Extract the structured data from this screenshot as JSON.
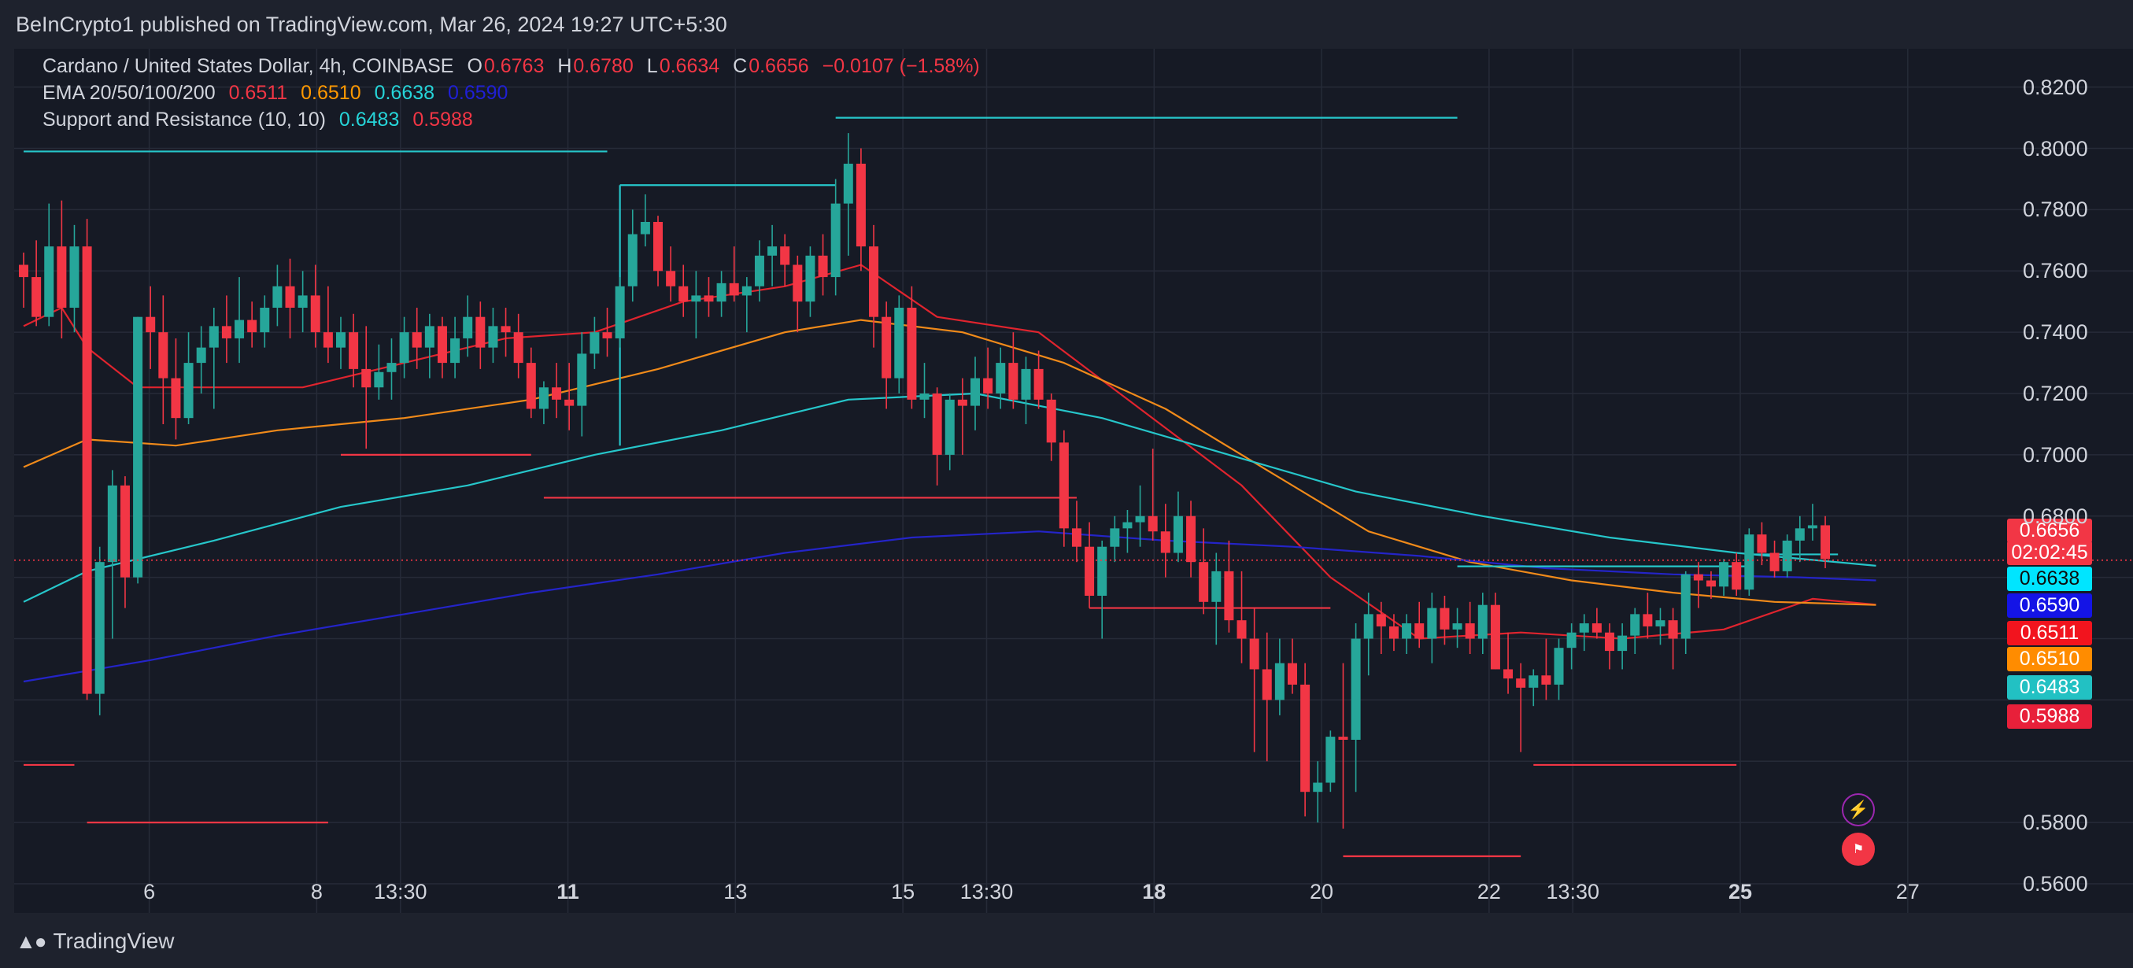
{
  "header": {
    "publish_line": "BeInCrypto1 published on TradingView.com, Mar 26, 2024 19:27 UTC+5:30"
  },
  "legend": {
    "symbol": "Cardano / United States Dollar, 4h, COINBASE",
    "o_label": "O",
    "o": "0.6763",
    "h_label": "H",
    "h": "0.6780",
    "l_label": "L",
    "l": "0.6634",
    "c_label": "C",
    "c": "0.6656",
    "change": "−0.0107 (−1.58%)",
    "ema_name": "EMA 20/50/100/200",
    "ema20": "0.6511",
    "ema50": "0.6510",
    "ema100": "0.6638",
    "ema200": "0.6590",
    "sr_name": "Support and Resistance (10, 10)",
    "sr_res": "0.6483",
    "sr_sup": "0.5988"
  },
  "price_tags": {
    "last": "0.6656",
    "countdown": "02:02:45",
    "ema100": "0.6638",
    "ema200": "0.6590",
    "ema20": "0.6511",
    "ema50": "0.6510",
    "resistance": "0.6483",
    "support": "0.5988"
  },
  "footer": {
    "brand": "TradingView"
  },
  "icons": {
    "flash": "lightning-icon",
    "flag": "us-flag-icon"
  },
  "colors": {
    "up": "#26a69a",
    "down": "#f23645",
    "ema20": "#e0242e",
    "ema50": "#f08a1a",
    "ema100": "#26c6ca",
    "ema200": "#2424c8",
    "resistance": "#26c6ca",
    "support": "#f23645"
  },
  "chart_data": {
    "type": "candlestick",
    "symbol": "ADA/USD",
    "timeframe": "4h",
    "exchange": "COINBASE",
    "x_ticks": [
      {
        "label": "6",
        "bold": false,
        "t": 1.5
      },
      {
        "label": "8",
        "bold": false,
        "t": 3.5
      },
      {
        "label": "13:30",
        "bold": false,
        "t": 4.5
      },
      {
        "label": "11",
        "bold": true,
        "t": 6.5
      },
      {
        "label": "13",
        "bold": false,
        "t": 8.5
      },
      {
        "label": "15",
        "bold": false,
        "t": 10.5
      },
      {
        "label": "13:30",
        "bold": false,
        "t": 11.5
      },
      {
        "label": "18",
        "bold": true,
        "t": 13.5
      },
      {
        "label": "20",
        "bold": false,
        "t": 15.5
      },
      {
        "label": "22",
        "bold": false,
        "t": 17.5
      },
      {
        "label": "13:30",
        "bold": false,
        "t": 18.5
      },
      {
        "label": "25",
        "bold": true,
        "t": 20.5
      },
      {
        "label": "27",
        "bold": false,
        "t": 22.5
      }
    ],
    "y_ticks": [
      "0.8200",
      "0.8000",
      "0.7800",
      "0.7600",
      "0.7400",
      "0.7200",
      "0.7000",
      "0.6800",
      "0.5800",
      "0.5600"
    ],
    "y_range": [
      0.5505,
      0.8325
    ],
    "last_price": 0.6656,
    "candles": [
      [
        0.762,
        0.766,
        0.748,
        0.758
      ],
      [
        0.758,
        0.77,
        0.742,
        0.745
      ],
      [
        0.745,
        0.782,
        0.742,
        0.768
      ],
      [
        0.768,
        0.783,
        0.738,
        0.748
      ],
      [
        0.748,
        0.775,
        0.74,
        0.768
      ],
      [
        0.768,
        0.777,
        0.62,
        0.622
      ],
      [
        0.622,
        0.67,
        0.615,
        0.665
      ],
      [
        0.665,
        0.695,
        0.64,
        0.69
      ],
      [
        0.69,
        0.693,
        0.65,
        0.66
      ],
      [
        0.66,
        0.745,
        0.658,
        0.745
      ],
      [
        0.745,
        0.755,
        0.728,
        0.74
      ],
      [
        0.74,
        0.752,
        0.71,
        0.725
      ],
      [
        0.725,
        0.738,
        0.705,
        0.712
      ],
      [
        0.712,
        0.74,
        0.71,
        0.73
      ],
      [
        0.73,
        0.742,
        0.72,
        0.735
      ],
      [
        0.735,
        0.748,
        0.715,
        0.742
      ],
      [
        0.742,
        0.752,
        0.73,
        0.738
      ],
      [
        0.738,
        0.758,
        0.73,
        0.744
      ],
      [
        0.744,
        0.75,
        0.735,
        0.74
      ],
      [
        0.74,
        0.752,
        0.735,
        0.748
      ],
      [
        0.748,
        0.762,
        0.742,
        0.755
      ],
      [
        0.755,
        0.764,
        0.738,
        0.748
      ],
      [
        0.748,
        0.76,
        0.74,
        0.752
      ],
      [
        0.752,
        0.762,
        0.735,
        0.74
      ],
      [
        0.74,
        0.755,
        0.73,
        0.735
      ],
      [
        0.735,
        0.745,
        0.728,
        0.74
      ],
      [
        0.74,
        0.746,
        0.722,
        0.728
      ],
      [
        0.728,
        0.742,
        0.702,
        0.722
      ],
      [
        0.722,
        0.736,
        0.718,
        0.727
      ],
      [
        0.727,
        0.738,
        0.718,
        0.73
      ],
      [
        0.73,
        0.745,
        0.725,
        0.74
      ],
      [
        0.74,
        0.748,
        0.728,
        0.735
      ],
      [
        0.735,
        0.746,
        0.725,
        0.742
      ],
      [
        0.742,
        0.745,
        0.725,
        0.73
      ],
      [
        0.73,
        0.745,
        0.725,
        0.738
      ],
      [
        0.738,
        0.752,
        0.732,
        0.745
      ],
      [
        0.745,
        0.75,
        0.728,
        0.735
      ],
      [
        0.735,
        0.748,
        0.73,
        0.742
      ],
      [
        0.742,
        0.748,
        0.732,
        0.74
      ],
      [
        0.74,
        0.746,
        0.725,
        0.73
      ],
      [
        0.73,
        0.735,
        0.712,
        0.715
      ],
      [
        0.715,
        0.724,
        0.71,
        0.722
      ],
      [
        0.722,
        0.73,
        0.712,
        0.718
      ],
      [
        0.718,
        0.73,
        0.708,
        0.716
      ],
      [
        0.716,
        0.74,
        0.706,
        0.733
      ],
      [
        0.733,
        0.745,
        0.728,
        0.74
      ],
      [
        0.74,
        0.748,
        0.732,
        0.738
      ],
      [
        0.738,
        0.758,
        0.735,
        0.755
      ],
      [
        0.755,
        0.78,
        0.75,
        0.772
      ],
      [
        0.772,
        0.785,
        0.768,
        0.776
      ],
      [
        0.776,
        0.778,
        0.755,
        0.76
      ],
      [
        0.76,
        0.768,
        0.75,
        0.755
      ],
      [
        0.755,
        0.762,
        0.745,
        0.75
      ],
      [
        0.75,
        0.76,
        0.738,
        0.752
      ],
      [
        0.752,
        0.758,
        0.745,
        0.75
      ],
      [
        0.75,
        0.76,
        0.745,
        0.756
      ],
      [
        0.756,
        0.768,
        0.75,
        0.752
      ],
      [
        0.752,
        0.758,
        0.74,
        0.755
      ],
      [
        0.755,
        0.77,
        0.75,
        0.765
      ],
      [
        0.765,
        0.775,
        0.755,
        0.768
      ],
      [
        0.768,
        0.772,
        0.755,
        0.762
      ],
      [
        0.762,
        0.765,
        0.74,
        0.75
      ],
      [
        0.75,
        0.768,
        0.745,
        0.765
      ],
      [
        0.765,
        0.772,
        0.752,
        0.758
      ],
      [
        0.758,
        0.79,
        0.752,
        0.782
      ],
      [
        0.782,
        0.805,
        0.765,
        0.795
      ],
      [
        0.795,
        0.8,
        0.76,
        0.768
      ],
      [
        0.768,
        0.775,
        0.735,
        0.745
      ],
      [
        0.745,
        0.75,
        0.715,
        0.725
      ],
      [
        0.725,
        0.752,
        0.72,
        0.748
      ],
      [
        0.748,
        0.755,
        0.715,
        0.718
      ],
      [
        0.718,
        0.73,
        0.712,
        0.72
      ],
      [
        0.72,
        0.722,
        0.69,
        0.7
      ],
      [
        0.7,
        0.72,
        0.695,
        0.718
      ],
      [
        0.718,
        0.725,
        0.7,
        0.716
      ],
      [
        0.716,
        0.732,
        0.708,
        0.725
      ],
      [
        0.725,
        0.735,
        0.715,
        0.72
      ],
      [
        0.72,
        0.735,
        0.715,
        0.73
      ],
      [
        0.73,
        0.74,
        0.715,
        0.718
      ],
      [
        0.718,
        0.732,
        0.71,
        0.728
      ],
      [
        0.728,
        0.734,
        0.715,
        0.718
      ],
      [
        0.718,
        0.72,
        0.698,
        0.704
      ],
      [
        0.704,
        0.708,
        0.67,
        0.676
      ],
      [
        0.676,
        0.685,
        0.665,
        0.67
      ],
      [
        0.67,
        0.678,
        0.65,
        0.654
      ],
      [
        0.654,
        0.672,
        0.64,
        0.67
      ],
      [
        0.67,
        0.68,
        0.665,
        0.676
      ],
      [
        0.676,
        0.682,
        0.668,
        0.678
      ],
      [
        0.678,
        0.69,
        0.67,
        0.68
      ],
      [
        0.68,
        0.702,
        0.672,
        0.675
      ],
      [
        0.675,
        0.684,
        0.66,
        0.668
      ],
      [
        0.668,
        0.688,
        0.665,
        0.68
      ],
      [
        0.68,
        0.685,
        0.66,
        0.665
      ],
      [
        0.665,
        0.676,
        0.648,
        0.652
      ],
      [
        0.652,
        0.668,
        0.638,
        0.662
      ],
      [
        0.662,
        0.672,
        0.642,
        0.646
      ],
      [
        0.646,
        0.662,
        0.632,
        0.64
      ],
      [
        0.64,
        0.65,
        0.603,
        0.63
      ],
      [
        0.63,
        0.642,
        0.6,
        0.62
      ],
      [
        0.62,
        0.64,
        0.615,
        0.632
      ],
      [
        0.632,
        0.64,
        0.622,
        0.625
      ],
      [
        0.625,
        0.632,
        0.582,
        0.59
      ],
      [
        0.59,
        0.6,
        0.58,
        0.593
      ],
      [
        0.593,
        0.61,
        0.59,
        0.608
      ],
      [
        0.608,
        0.632,
        0.578,
        0.607
      ],
      [
        0.607,
        0.645,
        0.59,
        0.64
      ],
      [
        0.64,
        0.655,
        0.628,
        0.648
      ],
      [
        0.648,
        0.652,
        0.635,
        0.644
      ],
      [
        0.644,
        0.648,
        0.636,
        0.64
      ],
      [
        0.64,
        0.648,
        0.635,
        0.645
      ],
      [
        0.645,
        0.652,
        0.637,
        0.64
      ],
      [
        0.64,
        0.655,
        0.632,
        0.65
      ],
      [
        0.65,
        0.654,
        0.638,
        0.643
      ],
      [
        0.643,
        0.65,
        0.637,
        0.645
      ],
      [
        0.645,
        0.652,
        0.635,
        0.64
      ],
      [
        0.64,
        0.655,
        0.635,
        0.651
      ],
      [
        0.651,
        0.655,
        0.63,
        0.63
      ],
      [
        0.63,
        0.642,
        0.622,
        0.627
      ],
      [
        0.627,
        0.632,
        0.603,
        0.624
      ],
      [
        0.624,
        0.63,
        0.618,
        0.628
      ],
      [
        0.628,
        0.64,
        0.62,
        0.625
      ],
      [
        0.625,
        0.64,
        0.62,
        0.637
      ],
      [
        0.637,
        0.645,
        0.63,
        0.642
      ],
      [
        0.642,
        0.648,
        0.636,
        0.645
      ],
      [
        0.645,
        0.65,
        0.64,
        0.642
      ],
      [
        0.642,
        0.645,
        0.63,
        0.636
      ],
      [
        0.636,
        0.645,
        0.63,
        0.641
      ],
      [
        0.641,
        0.65,
        0.635,
        0.648
      ],
      [
        0.648,
        0.655,
        0.64,
        0.644
      ],
      [
        0.644,
        0.65,
        0.638,
        0.646
      ],
      [
        0.646,
        0.65,
        0.63,
        0.64
      ],
      [
        0.64,
        0.662,
        0.635,
        0.661
      ],
      [
        0.661,
        0.665,
        0.65,
        0.659
      ],
      [
        0.659,
        0.662,
        0.653,
        0.657
      ],
      [
        0.657,
        0.666,
        0.654,
        0.665
      ],
      [
        0.665,
        0.668,
        0.654,
        0.656
      ],
      [
        0.656,
        0.676,
        0.654,
        0.674
      ],
      [
        0.674,
        0.678,
        0.664,
        0.668
      ],
      [
        0.668,
        0.672,
        0.66,
        0.662
      ],
      [
        0.662,
        0.674,
        0.66,
        0.672
      ],
      [
        0.672,
        0.68,
        0.665,
        0.676
      ],
      [
        0.676,
        0.684,
        0.672,
        0.677
      ],
      [
        0.677,
        0.68,
        0.663,
        0.666
      ]
    ],
    "ema": {
      "EMA 20": [
        [
          0,
          0.742
        ],
        [
          3,
          0.748
        ],
        [
          5,
          0.735
        ],
        [
          9,
          0.722
        ],
        [
          15,
          0.722
        ],
        [
          22,
          0.722
        ],
        [
          30,
          0.73
        ],
        [
          38,
          0.738
        ],
        [
          45,
          0.74
        ],
        [
          52,
          0.75
        ],
        [
          60,
          0.755
        ],
        [
          66,
          0.762
        ],
        [
          72,
          0.745
        ],
        [
          80,
          0.74
        ],
        [
          88,
          0.715
        ],
        [
          96,
          0.69
        ],
        [
          103,
          0.66
        ],
        [
          110,
          0.64
        ],
        [
          118,
          0.642
        ],
        [
          126,
          0.64
        ],
        [
          134,
          0.643
        ],
        [
          141,
          0.653
        ],
        [
          146,
          0.6511
        ]
      ],
      "EMA 50": [
        [
          0,
          0.696
        ],
        [
          5,
          0.705
        ],
        [
          12,
          0.703
        ],
        [
          20,
          0.708
        ],
        [
          30,
          0.712
        ],
        [
          40,
          0.718
        ],
        [
          50,
          0.728
        ],
        [
          60,
          0.74
        ],
        [
          66,
          0.744
        ],
        [
          74,
          0.74
        ],
        [
          82,
          0.73
        ],
        [
          90,
          0.715
        ],
        [
          98,
          0.695
        ],
        [
          106,
          0.675
        ],
        [
          114,
          0.665
        ],
        [
          122,
          0.659
        ],
        [
          130,
          0.655
        ],
        [
          138,
          0.652
        ],
        [
          146,
          0.651
        ]
      ],
      "EMA 100": [
        [
          0,
          0.652
        ],
        [
          5,
          0.662
        ],
        [
          15,
          0.672
        ],
        [
          25,
          0.683
        ],
        [
          35,
          0.69
        ],
        [
          45,
          0.7
        ],
        [
          55,
          0.708
        ],
        [
          65,
          0.718
        ],
        [
          75,
          0.72
        ],
        [
          85,
          0.712
        ],
        [
          95,
          0.7
        ],
        [
          105,
          0.688
        ],
        [
          115,
          0.68
        ],
        [
          125,
          0.673
        ],
        [
          135,
          0.668
        ],
        [
          146,
          0.6638
        ]
      ],
      "EMA 200": [
        [
          0,
          0.626
        ],
        [
          10,
          0.633
        ],
        [
          20,
          0.641
        ],
        [
          30,
          0.648
        ],
        [
          40,
          0.655
        ],
        [
          50,
          0.661
        ],
        [
          60,
          0.668
        ],
        [
          70,
          0.673
        ],
        [
          80,
          0.675
        ],
        [
          90,
          0.672
        ],
        [
          100,
          0.67
        ],
        [
          110,
          0.667
        ],
        [
          120,
          0.663
        ],
        [
          130,
          0.661
        ],
        [
          140,
          0.66
        ],
        [
          146,
          0.659
        ]
      ]
    },
    "resistance_levels": [
      {
        "from": 0,
        "to": 46,
        "y": 0.799
      },
      {
        "from": 47,
        "to": 64,
        "y": 0.788,
        "drop_to": 0.703
      },
      {
        "from": 64,
        "to": 113,
        "y": 0.81
      },
      {
        "from": 113,
        "to": 136,
        "y": 0.6636
      },
      {
        "from": 136,
        "to": 143,
        "y": 0.6675
      }
    ],
    "support_levels": [
      {
        "from": 0,
        "to": 4,
        "y": 0.5988
      },
      {
        "from": 5,
        "to": 24,
        "y": 0.58
      },
      {
        "from": 25,
        "to": 40,
        "y": 0.7
      },
      {
        "from": 41,
        "to": 83,
        "y": 0.686
      },
      {
        "from": 84,
        "to": 103,
        "y": 0.65
      },
      {
        "from": 104,
        "to": 118,
        "y": 0.569
      },
      {
        "from": 119,
        "to": 135,
        "y": 0.5988
      }
    ]
  }
}
